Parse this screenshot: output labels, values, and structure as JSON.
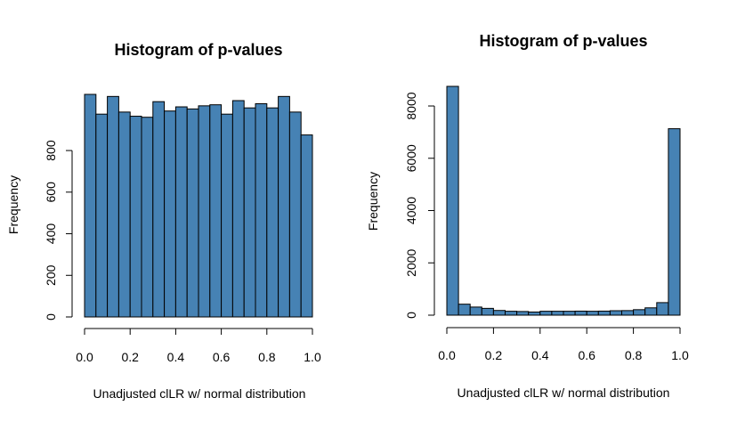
{
  "chart_data": [
    {
      "type": "bar",
      "title": "Histogram of p-values",
      "xlabel": "Unadjusted clLR w/ normal distribution",
      "ylabel": "Frequency",
      "bin_edges": [
        0.0,
        0.05,
        0.1,
        0.15,
        0.2,
        0.25,
        0.3,
        0.35,
        0.4,
        0.45,
        0.5,
        0.55,
        0.6,
        0.65,
        0.7,
        0.75,
        0.8,
        0.85,
        0.9,
        0.95,
        1.0
      ],
      "values": [
        1070,
        975,
        1060,
        985,
        965,
        960,
        1035,
        990,
        1010,
        1000,
        1015,
        1020,
        975,
        1040,
        1005,
        1025,
        1005,
        1060,
        985,
        875
      ],
      "xlim": [
        0,
        1
      ],
      "ylim": [
        0,
        1070
      ],
      "xticks": [
        0.0,
        0.2,
        0.4,
        0.6,
        0.8,
        1.0
      ],
      "xtick_labels": [
        "0.0",
        "0.2",
        "0.4",
        "0.6",
        "0.8",
        "1.0"
      ],
      "yticks": [
        0,
        200,
        400,
        600,
        800
      ],
      "ytick_labels": [
        "0",
        "200",
        "400",
        "600",
        "800"
      ],
      "bar_color": "#4682B4",
      "grid": false
    },
    {
      "type": "bar",
      "title": "Histogram of p-values",
      "xlabel": "Unadjusted clLR w/ normal distribution",
      "ylabel": "Frequency",
      "bin_edges": [
        0.0,
        0.05,
        0.1,
        0.15,
        0.2,
        0.25,
        0.3,
        0.35,
        0.4,
        0.45,
        0.5,
        0.55,
        0.6,
        0.65,
        0.7,
        0.75,
        0.8,
        0.85,
        0.9,
        0.95,
        1.0
      ],
      "values": [
        8750,
        420,
        310,
        260,
        180,
        150,
        140,
        120,
        150,
        150,
        150,
        155,
        150,
        155,
        170,
        175,
        210,
        280,
        480,
        7130
      ],
      "xlim": [
        0,
        1
      ],
      "ylim": [
        0,
        8750
      ],
      "xticks": [
        0.0,
        0.2,
        0.4,
        0.6,
        0.8,
        1.0
      ],
      "xtick_labels": [
        "0.0",
        "0.2",
        "0.4",
        "0.6",
        "0.8",
        "1.0"
      ],
      "yticks": [
        0,
        2000,
        4000,
        6000,
        8000
      ],
      "ytick_labels": [
        "0",
        "2000",
        "4000",
        "6000",
        "8000"
      ],
      "bar_color": "#4682B4",
      "grid": false
    }
  ]
}
